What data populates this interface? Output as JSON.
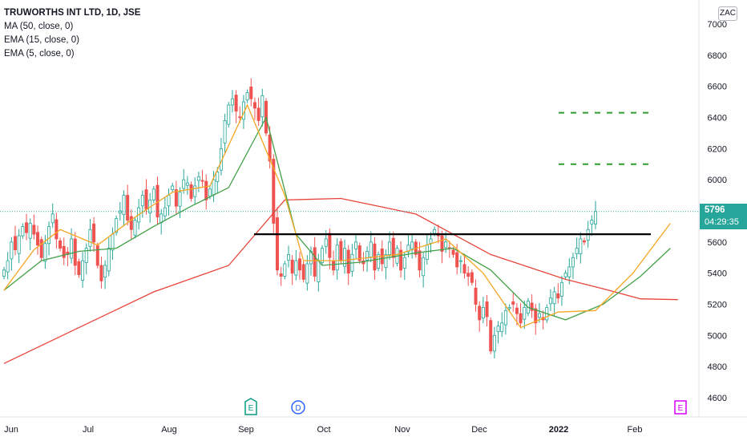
{
  "header": {
    "title": "TRUWORTHS INT LTD, 1D, JSE",
    "indicators": [
      "MA (50, close, 0)",
      "EMA (15, close, 0)",
      "EMA (5, close, 0)"
    ],
    "currency": "ZAC"
  },
  "last_price": {
    "price": "5796",
    "countdown": "04:29:35"
  },
  "events": [
    "E",
    "D",
    "E"
  ],
  "colors": {
    "up": "#26a69a",
    "down": "#ef5350",
    "ma50": "#e8443a",
    "ema15": "#43a047",
    "ema5": "#f5a623",
    "level": "#000000",
    "target": "#2e9e2e",
    "bg": "#ffffff"
  },
  "chart_data": {
    "type": "candlestick",
    "y_axis": {
      "ticks": [
        4600,
        4800,
        5000,
        5200,
        5400,
        5600,
        5800,
        6000,
        6200,
        6400,
        6600,
        6800,
        7000
      ],
      "range": [
        4490,
        7030
      ]
    },
    "x_axis": {
      "ticks": [
        "Jun",
        "Jul",
        "Aug",
        "Sep",
        "Oct",
        "Nov",
        "Dec",
        "2022",
        "Feb"
      ]
    },
    "close": [
      5420,
      5480,
      5600,
      5550,
      5640,
      5700,
      5660,
      5720,
      5650,
      5580,
      5500,
      5590,
      5700,
      5780,
      5620,
      5560,
      5500,
      5520,
      5620,
      5450,
      5390,
      5480,
      5560,
      5680,
      5600,
      5450,
      5350,
      5450,
      5560,
      5650,
      5750,
      5800,
      5900,
      5740,
      5680,
      5740,
      5820,
      5900,
      5810,
      5870,
      5940,
      5760,
      5780,
      5820,
      5900,
      5960,
      5830,
      5920,
      6000,
      5980,
      5880,
      5960,
      6020,
      5990,
      5870,
      5940,
      6000,
      6050,
      6200,
      6380,
      6480,
      6520,
      6440,
      6400,
      6500,
      6560,
      6520,
      6460,
      6380,
      6540,
      6300,
      6120,
      5720,
      5420,
      5380,
      5460,
      5520,
      5400,
      5480,
      5420,
      5360,
      5460,
      5540,
      5380,
      5480,
      5560,
      5620,
      5500,
      5420,
      5580,
      5480,
      5560,
      5400,
      5520,
      5600,
      5480,
      5460,
      5540,
      5600,
      5420,
      5520,
      5460,
      5520,
      5600,
      5500,
      5560,
      5420,
      5500,
      5580,
      5600,
      5520,
      5420,
      5500,
      5580,
      5620,
      5680,
      5640,
      5540,
      5600,
      5560,
      5520,
      5440,
      5480,
      5400,
      5380,
      5340,
      5200,
      5100,
      5180,
      5120,
      4900,
      5000,
      5060,
      5080,
      5160,
      5180,
      5200,
      5140,
      5080,
      5180,
      5220,
      5160,
      5080,
      5140,
      5100,
      5180,
      5240,
      5280,
      5240,
      5340,
      5400,
      5440,
      5500,
      5560,
      5620,
      5600,
      5680,
      5740,
      5796
    ],
    "ma50": {
      "label": "MA (50, close, 0)",
      "values": [
        [
          0,
          4820
        ],
        [
          20,
          5050
        ],
        [
          40,
          5280
        ],
        [
          60,
          5450
        ],
        [
          75,
          5870
        ],
        [
          90,
          5880
        ],
        [
          110,
          5780
        ],
        [
          130,
          5520
        ],
        [
          150,
          5360
        ],
        [
          160,
          5300
        ],
        [
          170,
          5235
        ],
        [
          180,
          5230
        ]
      ]
    },
    "ema15": {
      "label": "EMA (15, close, 0)",
      "values": [
        [
          0,
          5290
        ],
        [
          10,
          5480
        ],
        [
          20,
          5540
        ],
        [
          30,
          5560
        ],
        [
          40,
          5700
        ],
        [
          50,
          5830
        ],
        [
          60,
          5950
        ],
        [
          70,
          6400
        ],
        [
          78,
          5650
        ],
        [
          85,
          5450
        ],
        [
          95,
          5470
        ],
        [
          110,
          5530
        ],
        [
          120,
          5560
        ],
        [
          130,
          5420
        ],
        [
          140,
          5180
        ],
        [
          150,
          5100
        ],
        [
          160,
          5200
        ],
        [
          170,
          5380
        ],
        [
          178,
          5560
        ]
      ]
    },
    "ema5": {
      "label": "EMA (5, close, 0)",
      "values": [
        [
          0,
          5290
        ],
        [
          8,
          5550
        ],
        [
          15,
          5680
        ],
        [
          25,
          5580
        ],
        [
          35,
          5760
        ],
        [
          45,
          5920
        ],
        [
          55,
          5960
        ],
        [
          65,
          6480
        ],
        [
          75,
          5900
        ],
        [
          80,
          5480
        ],
        [
          90,
          5480
        ],
        [
          105,
          5520
        ],
        [
          118,
          5620
        ],
        [
          128,
          5400
        ],
        [
          138,
          5050
        ],
        [
          148,
          5150
        ],
        [
          158,
          5160
        ],
        [
          168,
          5400
        ],
        [
          178,
          5720
        ]
      ]
    },
    "annotations": [
      {
        "label": "resistance",
        "y": 5650
      },
      {
        "label": "target-1",
        "y": 6100
      },
      {
        "label": "target-2",
        "y": 6430
      }
    ]
  }
}
